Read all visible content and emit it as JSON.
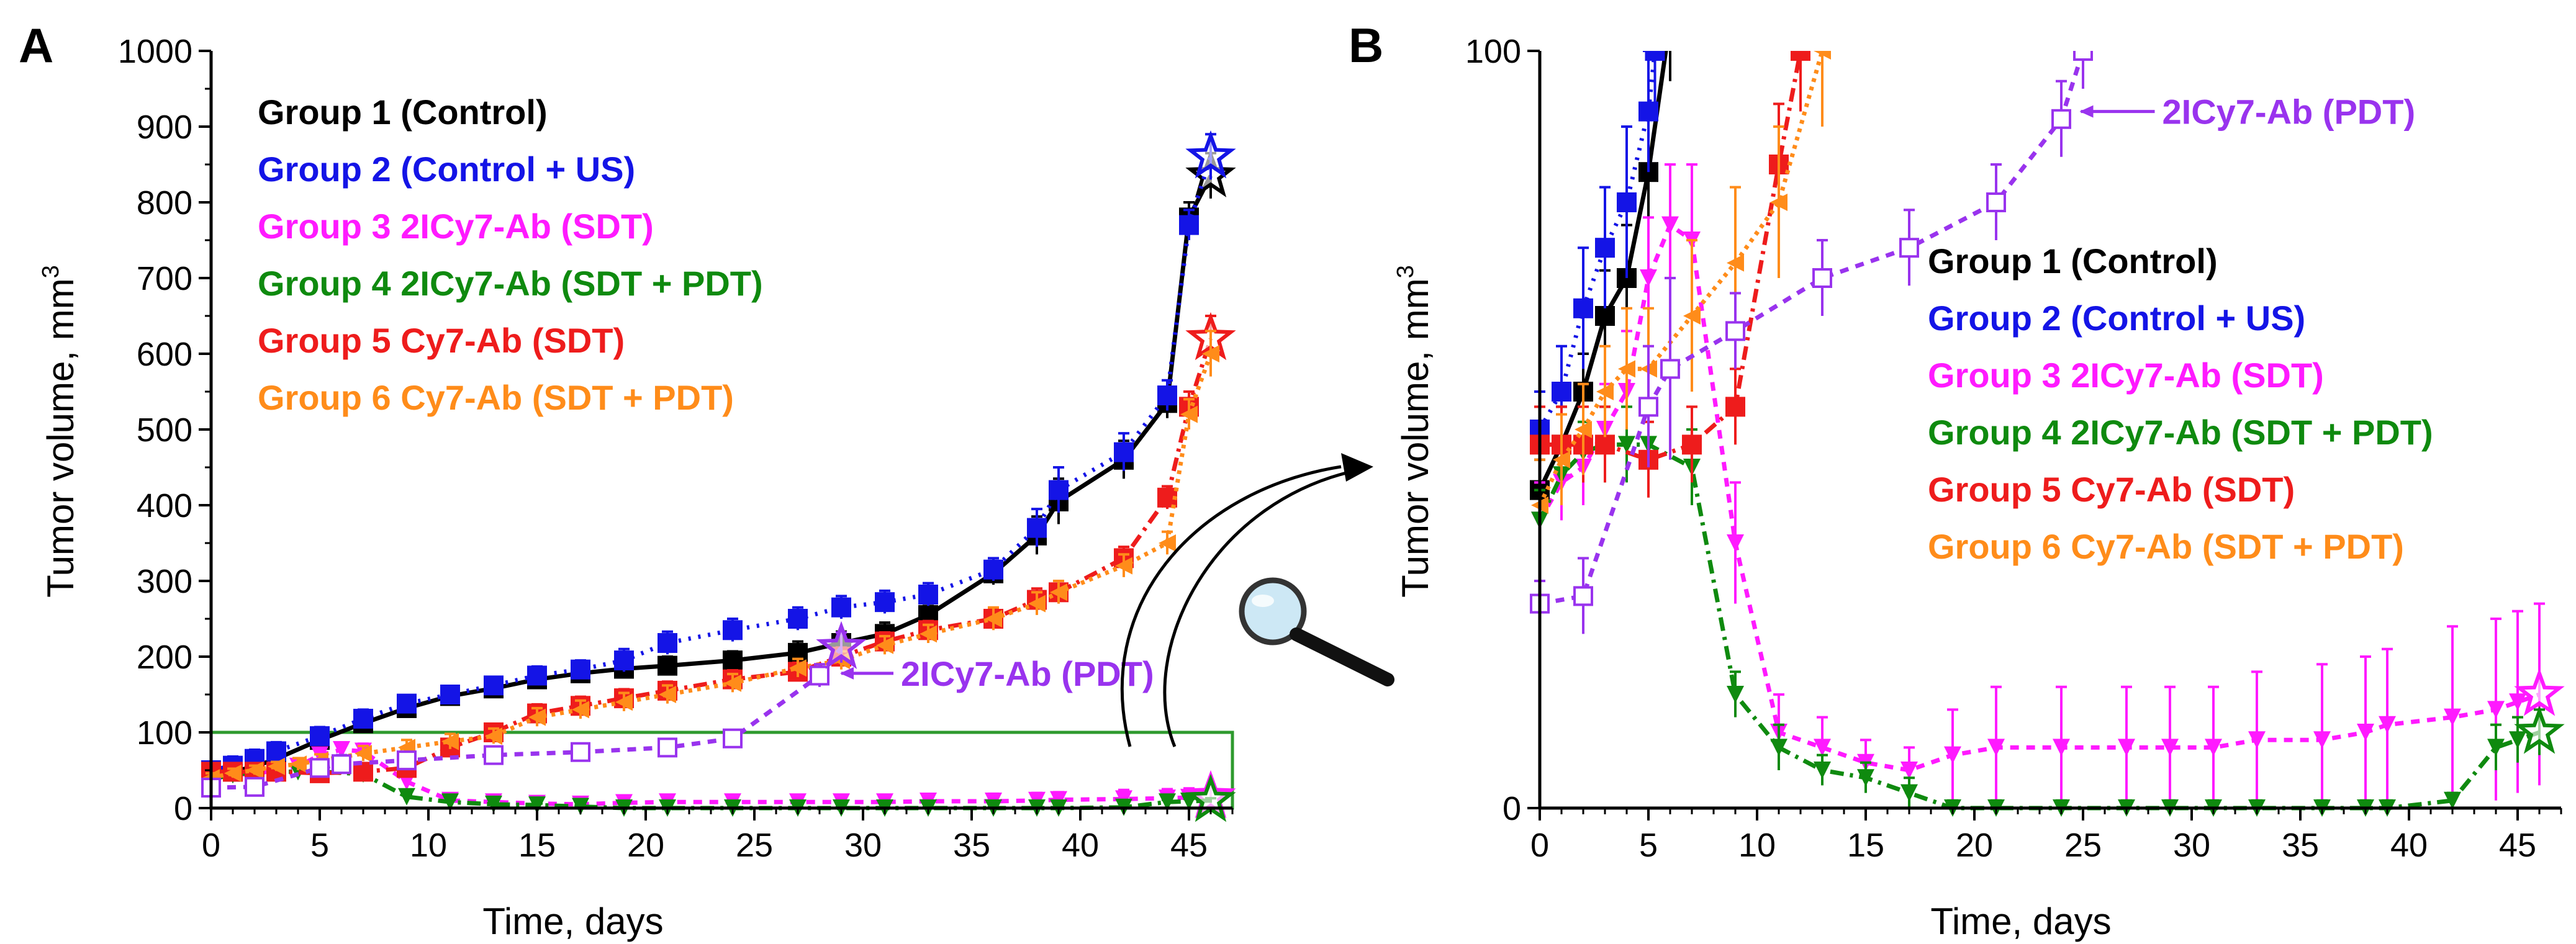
{
  "colors": {
    "g1": "#000000",
    "g2": "#1414e6",
    "g3": "#ff1aff",
    "g4": "#0f8a0f",
    "g5": "#ee1c1c",
    "g6": "#ff8c1a",
    "pdt": "#9933ee",
    "zoom_box": "#2e9a2e"
  },
  "chart_data": [
    {
      "type": "line",
      "panel": "A",
      "xlabel": "Time, days",
      "ylabel": "Tumor volume, mm3",
      "ylabel_main": "Tumor volume, mm",
      "ylabel_sup": "3",
      "xlim": [
        0,
        47
      ],
      "ylim": [
        0,
        1000
      ],
      "xticks": [
        0,
        5,
        10,
        15,
        20,
        25,
        30,
        35,
        40,
        45
      ],
      "yticks": [
        0,
        100,
        200,
        300,
        400,
        500,
        600,
        700,
        800,
        900,
        1000
      ],
      "legend": [
        {
          "label": "Group 1 (Control)",
          "color_key": "g1"
        },
        {
          "label": "Group 2 (Control + US)",
          "color_key": "g2"
        },
        {
          "label": "Group 3 2ICy7-Ab (SDT)",
          "color_key": "g3"
        },
        {
          "label": "Group 4 2ICy7-Ab (SDT + PDT)",
          "color_key": "g4"
        },
        {
          "label": "Group 5 Cy7-Ab (SDT)",
          "color_key": "g5"
        },
        {
          "label": "Group 6 Cy7-Ab (SDT + PDT)",
          "color_key": "g6"
        }
      ],
      "annotation": "2ICy7-Ab (PDT)",
      "zoom_box": {
        "x": [
          0,
          47
        ],
        "y": [
          0,
          100
        ]
      },
      "series": [
        {
          "name": "Group 1 (Control)",
          "color_key": "g1",
          "dash": "",
          "marker": "square",
          "end_star": true,
          "x": [
            0,
            1,
            2,
            3,
            5,
            7,
            9,
            11,
            13,
            15,
            17,
            19,
            21,
            24,
            27,
            29,
            31,
            33,
            36,
            38,
            39,
            42,
            44,
            45,
            46
          ],
          "y": [
            42,
            48,
            55,
            65,
            90,
            112,
            132,
            148,
            158,
            170,
            178,
            184,
            188,
            195,
            205,
            218,
            230,
            255,
            310,
            360,
            405,
            460,
            535,
            780,
            835
          ],
          "err": [
            10,
            10,
            10,
            12,
            12,
            10,
            10,
            8,
            10,
            10,
            12,
            12,
            12,
            12,
            15,
            15,
            15,
            15,
            15,
            25,
            30,
            25,
            20,
            20,
            30
          ]
        },
        {
          "name": "Group 2 (Control + US)",
          "color_key": "g2",
          "dash": "4,12",
          "marker": "square",
          "end_star": true,
          "x": [
            0,
            1,
            2,
            3,
            5,
            7,
            9,
            11,
            13,
            15,
            17,
            19,
            21,
            24,
            27,
            29,
            31,
            33,
            36,
            38,
            39,
            42,
            44,
            45,
            46
          ],
          "y": [
            50,
            56,
            65,
            75,
            95,
            118,
            138,
            150,
            162,
            175,
            183,
            195,
            218,
            235,
            250,
            265,
            272,
            282,
            315,
            370,
            420,
            470,
            545,
            770,
            860
          ],
          "err": [
            10,
            12,
            12,
            12,
            12,
            12,
            10,
            10,
            10,
            12,
            12,
            15,
            15,
            15,
            15,
            15,
            15,
            15,
            15,
            25,
            30,
            25,
            20,
            20,
            30
          ]
        },
        {
          "name": "Group 3 2ICy7-Ab (SDT)",
          "color_key": "g3",
          "dash": "14,12",
          "marker": "tri-down",
          "end_star": true,
          "x": [
            0,
            1,
            2,
            3,
            4,
            5,
            6,
            7,
            9,
            11,
            13,
            15,
            17,
            19,
            21,
            24,
            27,
            29,
            31,
            33,
            36,
            38,
            39,
            42,
            44,
            45,
            46
          ],
          "y": [
            38,
            44,
            45,
            50,
            55,
            70,
            77,
            75,
            35,
            10,
            8,
            6,
            5,
            7,
            8,
            8,
            8,
            8,
            8,
            9,
            9,
            10,
            11,
            12,
            13,
            14,
            15
          ],
          "err": [
            5,
            5,
            5,
            6,
            8,
            8,
            8,
            10,
            8,
            5,
            4,
            3,
            3,
            6,
            8,
            8,
            8,
            8,
            8,
            9,
            10,
            10,
            10,
            12,
            12,
            12,
            12
          ]
        },
        {
          "name": "Group 4 2ICy7-Ab (SDT + PDT)",
          "color_key": "g4",
          "dash": "22,10,5,10",
          "marker": "tri-down",
          "end_star": true,
          "x": [
            0,
            1,
            2,
            3,
            4,
            5,
            7,
            9,
            11,
            13,
            15,
            17,
            19,
            21,
            24,
            27,
            29,
            31,
            33,
            36,
            38,
            39,
            42,
            44,
            45,
            46
          ],
          "y": [
            38,
            44,
            47,
            48,
            48,
            48,
            45,
            15,
            8,
            5,
            4,
            2,
            0,
            0,
            0,
            0,
            0,
            0,
            0,
            0,
            0,
            0,
            1,
            8,
            9,
            10
          ],
          "err": [
            4,
            4,
            4,
            5,
            5,
            5,
            5,
            3,
            3,
            2,
            2,
            2,
            1,
            1,
            1,
            1,
            1,
            1,
            1,
            1,
            1,
            1,
            1,
            3,
            3,
            3
          ]
        },
        {
          "name": "Group 5 Cy7-Ab (SDT)",
          "color_key": "g5",
          "dash": "22,10,5,10",
          "marker": "square",
          "end_star": true,
          "x": [
            0,
            1,
            2,
            3,
            5,
            7,
            9,
            11,
            13,
            15,
            17,
            19,
            21,
            24,
            27,
            29,
            31,
            33,
            36,
            38,
            39,
            42,
            44,
            45,
            46
          ],
          "y": [
            48,
            48,
            48,
            48,
            46,
            48,
            53,
            80,
            100,
            125,
            135,
            145,
            155,
            170,
            180,
            200,
            220,
            235,
            250,
            275,
            285,
            330,
            410,
            530,
            620
          ],
          "err": [
            10,
            8,
            8,
            8,
            8,
            8,
            8,
            10,
            10,
            12,
            12,
            12,
            12,
            12,
            12,
            12,
            12,
            12,
            12,
            15,
            15,
            15,
            15,
            20,
            30
          ]
        },
        {
          "name": "Group 6 Cy7-Ab (SDT + PDT)",
          "color_key": "g6",
          "dash": "6,8",
          "marker": "tri-left",
          "end_star": false,
          "x": [
            0,
            1,
            2,
            3,
            4,
            5,
            7,
            9,
            11,
            13,
            15,
            17,
            19,
            21,
            24,
            27,
            29,
            31,
            33,
            36,
            38,
            39,
            42,
            44,
            45,
            46
          ],
          "y": [
            40,
            46,
            50,
            55,
            58,
            63,
            72,
            80,
            88,
            95,
            120,
            130,
            140,
            150,
            165,
            185,
            195,
            215,
            230,
            250,
            270,
            285,
            320,
            350,
            520,
            600
          ],
          "err": [
            6,
            6,
            6,
            6,
            8,
            8,
            10,
            10,
            10,
            10,
            12,
            12,
            12,
            12,
            12,
            12,
            12,
            12,
            12,
            15,
            15,
            15,
            15,
            15,
            20,
            30
          ]
        },
        {
          "name": "2ICy7-Ab (PDT)",
          "color_key": "pdt",
          "dash": "14,12",
          "marker": "square-open",
          "end_star": true,
          "x": [
            0,
            2,
            5,
            6,
            9,
            13,
            17,
            21,
            24,
            28,
            29
          ],
          "y": [
            27,
            28,
            53,
            58,
            63,
            70,
            74,
            80,
            92,
            175,
            212
          ],
          "err": [
            3,
            5,
            8,
            12,
            5,
            5,
            5,
            5,
            5,
            15,
            20
          ]
        }
      ]
    },
    {
      "type": "line",
      "panel": "B",
      "xlabel": "Time, days",
      "ylabel": "Tumor volume, mm3",
      "ylabel_main": "Tumor volume, mm",
      "ylabel_sup": "3",
      "xlim": [
        0,
        47
      ],
      "ylim": [
        0,
        100
      ],
      "xticks": [
        0,
        5,
        10,
        15,
        20,
        25,
        30,
        35,
        40,
        45
      ],
      "yticks": [
        0,
        100
      ],
      "legend": [
        {
          "label": "Group 1 (Control)",
          "color_key": "g1"
        },
        {
          "label": "Group 2 (Control + US)",
          "color_key": "g2"
        },
        {
          "label": "Group 3 2ICy7-Ab (SDT)",
          "color_key": "g3"
        },
        {
          "label": "Group 4 2ICy7-Ab (SDT + PDT)",
          "color_key": "g4"
        },
        {
          "label": "Group 5 Cy7-Ab (SDT)",
          "color_key": "g5"
        },
        {
          "label": "Group 6 Cy7-Ab (SDT + PDT)",
          "color_key": "g6"
        }
      ],
      "annotation": "2ICy7-Ab (PDT)",
      "series": [
        {
          "name": "Group 1 (Control)",
          "color_key": "g1",
          "dash": "",
          "marker": "square",
          "end_star": false,
          "x": [
            0,
            1,
            2,
            3,
            4,
            5,
            6
          ],
          "y": [
            42,
            48,
            55,
            65,
            70,
            84,
            104
          ],
          "err": [
            4,
            5,
            5,
            6,
            7,
            8,
            8
          ]
        },
        {
          "name": "Group 2 (Control + US)",
          "color_key": "g2",
          "dash": "4,12",
          "marker": "square",
          "end_star": false,
          "x": [
            0,
            1,
            2,
            3,
            4,
            5,
            5.3
          ],
          "y": [
            50,
            55,
            66,
            74,
            80,
            92,
            100
          ],
          "err": [
            5,
            6,
            8,
            8,
            10,
            8,
            8
          ]
        },
        {
          "name": "Group 3 2ICy7-Ab (SDT)",
          "color_key": "g3",
          "dash": "14,12",
          "marker": "tri-down",
          "end_star": true,
          "x": [
            0,
            1,
            2,
            3,
            4,
            5,
            6,
            7,
            9,
            11,
            13,
            15,
            17,
            19,
            21,
            24,
            27,
            29,
            31,
            33,
            36,
            38,
            39,
            42,
            44,
            45,
            46
          ],
          "y": [
            38,
            43,
            45,
            50,
            55,
            70,
            77,
            75,
            35,
            10,
            8,
            6,
            5,
            7,
            8,
            8,
            8,
            8,
            8,
            9,
            9,
            10,
            11,
            12,
            13,
            14,
            15
          ],
          "err": [
            5,
            5,
            5,
            6,
            8,
            8,
            8,
            10,
            8,
            5,
            4,
            3,
            3,
            6,
            8,
            8,
            8,
            8,
            8,
            9,
            10,
            10,
            10,
            12,
            12,
            12,
            12
          ]
        },
        {
          "name": "Group 4 2ICy7-Ab (SDT + PDT)",
          "color_key": "g4",
          "dash": "22,10,5,10",
          "marker": "tri-down",
          "end_star": true,
          "x": [
            0,
            1,
            2,
            3,
            4,
            5,
            7,
            9,
            11,
            13,
            15,
            17,
            19,
            21,
            24,
            27,
            29,
            31,
            33,
            36,
            38,
            39,
            42,
            44,
            45,
            46
          ],
          "y": [
            38,
            44,
            47,
            48,
            48,
            48,
            45,
            15,
            8,
            5,
            4,
            2,
            0,
            0,
            0,
            0,
            0,
            0,
            0,
            0,
            0,
            0,
            1,
            8,
            9,
            10
          ],
          "err": [
            4,
            4,
            4,
            5,
            5,
            5,
            5,
            3,
            3,
            2,
            2,
            2,
            1,
            1,
            1,
            1,
            1,
            1,
            1,
            1,
            1,
            1,
            1,
            3,
            3,
            3
          ]
        },
        {
          "name": "Group 5 Cy7-Ab (SDT)",
          "color_key": "g5",
          "dash": "22,10,5,10",
          "marker": "square",
          "end_star": false,
          "x": [
            0,
            1,
            2,
            3,
            5,
            7,
            9,
            11,
            12
          ],
          "y": [
            48,
            48,
            48,
            48,
            46,
            48,
            53,
            85,
            100
          ],
          "err": [
            5,
            5,
            5,
            5,
            5,
            5,
            5,
            8,
            8
          ]
        },
        {
          "name": "Group 6 Cy7-Ab (SDT + PDT)",
          "color_key": "g6",
          "dash": "6,8",
          "marker": "tri-left",
          "end_star": false,
          "x": [
            0,
            1,
            2,
            3,
            4,
            5,
            7,
            9,
            11,
            13
          ],
          "y": [
            40,
            46,
            50,
            55,
            58,
            58,
            65,
            72,
            80,
            100
          ],
          "err": [
            6,
            6,
            6,
            6,
            8,
            8,
            10,
            10,
            10,
            10
          ]
        },
        {
          "name": "2ICy7-Ab (PDT)",
          "color_key": "pdt",
          "dash": "14,12",
          "marker": "square-open",
          "end_star": false,
          "x": [
            0,
            2,
            5,
            6,
            9,
            13,
            17,
            21,
            24,
            25
          ],
          "y": [
            27,
            28,
            53,
            58,
            63,
            70,
            74,
            80,
            91,
            100
          ],
          "err": [
            3,
            5,
            8,
            12,
            5,
            5,
            5,
            5,
            5,
            5
          ]
        }
      ]
    }
  ]
}
